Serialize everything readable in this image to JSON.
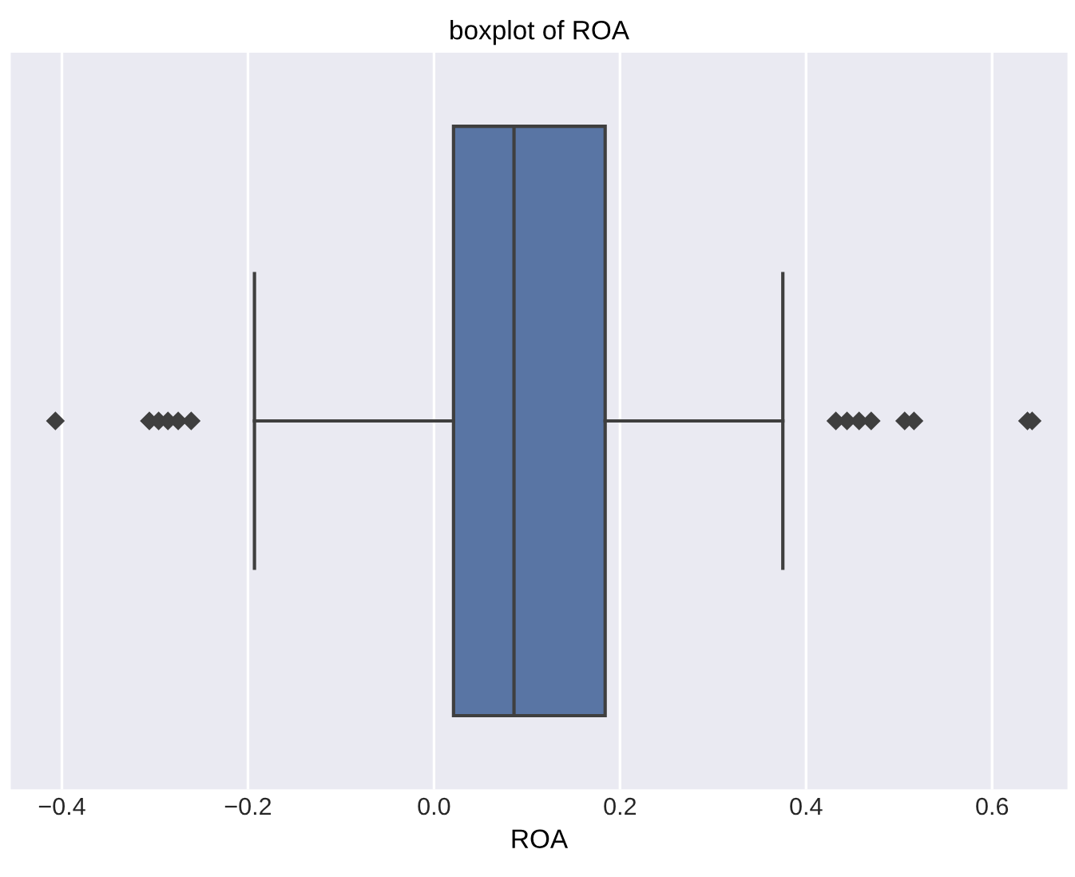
{
  "chart_data": {
    "type": "box",
    "title": "boxplot of ROA",
    "xlabel": "ROA",
    "orientation": "horizontal",
    "categories": [
      null
    ],
    "series": [
      {
        "color": "#5975a4",
        "boxes": [
          {
            "low": -0.193,
            "q1": 0.021,
            "median": 0.086,
            "q3": 0.184,
            "high": 0.375,
            "outliers": [
              -0.407,
              -0.306,
              -0.296,
              -0.286,
              -0.275,
              -0.261,
              0.432,
              0.444,
              0.457,
              0.47,
              0.506,
              0.516,
              0.638,
              0.643
            ]
          }
        ]
      }
    ],
    "xlim": [
      -0.455,
      0.681
    ],
    "xticks": [
      {
        "value": -0.4,
        "label": "−0.4"
      },
      {
        "value": -0.2,
        "label": "−0.2"
      },
      {
        "value": 0,
        "label": "0.0"
      },
      0.2,
      0.4,
      0.6
    ],
    "grid": "x",
    "marker": "diamond",
    "tick_labels": "x"
  }
}
